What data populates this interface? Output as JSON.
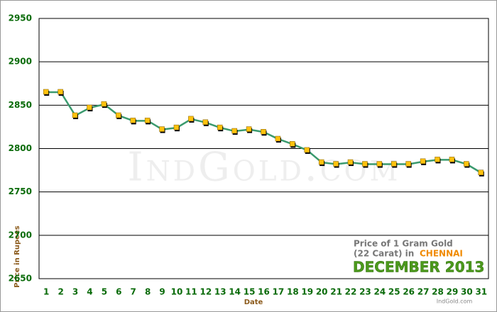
{
  "chart_data": {
    "type": "line",
    "x_label": "Date",
    "y_label": "Price in Rupees",
    "watermark": "IndGold.com",
    "note": {
      "line1": "Price of 1 Gram Gold",
      "line2": "(22 Carat) in",
      "city": "CHENNAI",
      "period": "DECEMBER 2013",
      "site": "IndGold.com"
    },
    "categories": [
      "1",
      "2",
      "3",
      "4",
      "5",
      "6",
      "7",
      "8",
      "9",
      "10",
      "11",
      "12",
      "13",
      "14",
      "15",
      "16",
      "17",
      "18",
      "19",
      "20",
      "21",
      "22",
      "23",
      "24",
      "25",
      "26",
      "27",
      "28",
      "29",
      "30",
      "31"
    ],
    "series": [
      {
        "name": "Price",
        "color": "#3a9a6e",
        "marker_color": "#ffc20e",
        "values": [
          2865,
          2865,
          2838,
          2847,
          2851,
          2838,
          2832,
          2832,
          2822,
          2824,
          2834,
          2830,
          2824,
          2820,
          2822,
          2819,
          2811,
          2805,
          2798,
          2784,
          2782,
          2784,
          2782,
          2782,
          2782,
          2782,
          2785,
          2787,
          2787,
          2782,
          2772
        ]
      }
    ],
    "ylim": [
      2650,
      2950
    ],
    "yticks": [
      2650,
      2700,
      2750,
      2800,
      2850,
      2900,
      2950
    ],
    "grid": true
  }
}
